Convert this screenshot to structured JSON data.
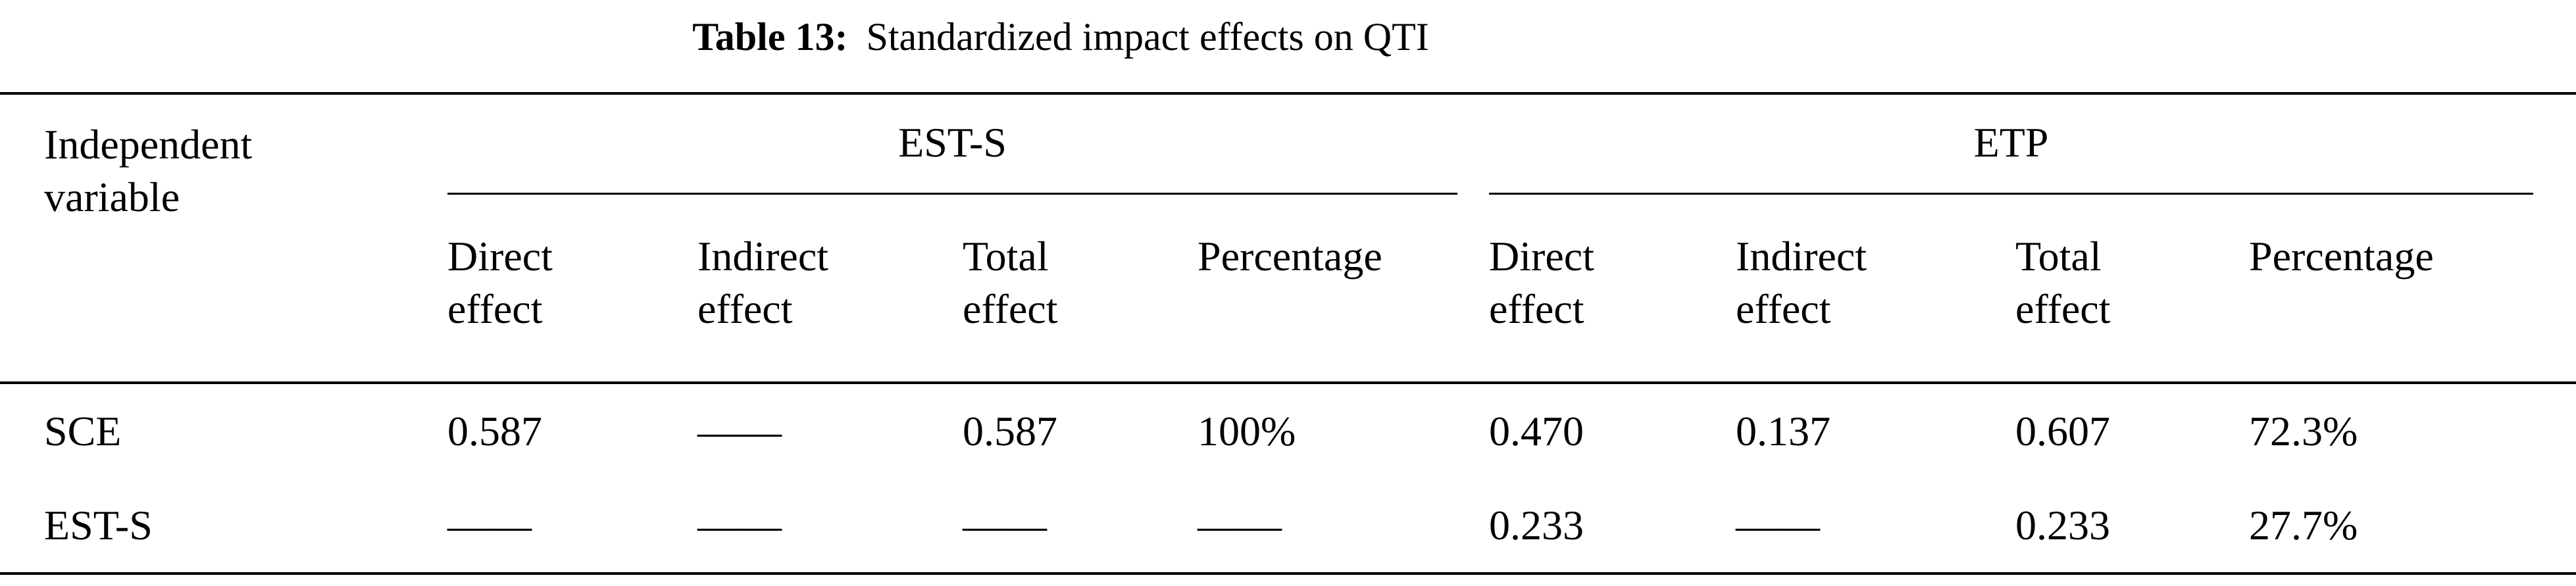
{
  "table": {
    "caption": {
      "label": "Table 13:",
      "text": "Standardized impact effects on QTI"
    },
    "header": {
      "row_label": "Independent\nvariable",
      "groups": [
        {
          "label": "EST-S"
        },
        {
          "label": "ETP"
        }
      ],
      "columns": [
        "Direct\neffect",
        "Indirect\neffect",
        "Total\neffect",
        "Percentage"
      ]
    },
    "rows": [
      {
        "variable": "SCE",
        "values": [
          "0.587",
          "——",
          "0.587",
          "100%",
          "0.470",
          "0.137",
          "0.607",
          "72.3%"
        ]
      },
      {
        "variable": "EST-S",
        "values": [
          "——",
          "——",
          "——",
          "——",
          "0.233",
          "——",
          "0.233",
          "27.7%"
        ]
      }
    ]
  },
  "colors": {
    "background": "#ffffff",
    "text": "#000000",
    "rule": "#000000"
  }
}
